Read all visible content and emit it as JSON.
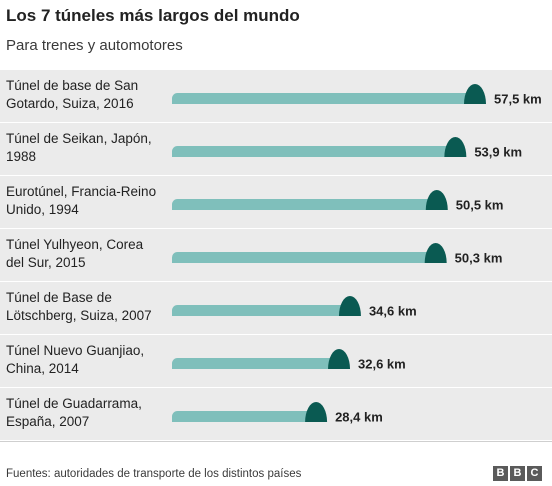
{
  "chart_data": {
    "type": "bar",
    "orientation": "horizontal",
    "title": "Los 7 túneles más largos del mundo",
    "subtitle": "Para trenes y automotores",
    "unit": "km",
    "categories": [
      [
        "Túnel de base de San",
        "Gotardo, Suiza, 2016"
      ],
      [
        "Túnel de Seikan, Japón,",
        "1988"
      ],
      [
        "Eurotúnel, Francia-Reino",
        "Unido, 1994"
      ],
      [
        "Túnel Yulhyeon, Corea",
        "del Sur, 2015"
      ],
      [
        "Túnel de Base de",
        "Lötschberg, Suiza, 2007"
      ],
      [
        "Túnel Nuevo Guanjiao,",
        "China, 2014"
      ],
      [
        "Túnel de Guadarrama,",
        "España, 2007"
      ]
    ],
    "values": [
      57.5,
      53.9,
      50.5,
      50.3,
      34.6,
      32.6,
      28.4
    ],
    "value_labels": [
      "57,5 km",
      "53,9 km",
      "50,5 km",
      "50,3 km",
      "34,6 km",
      "32,6 km",
      "28,4 km"
    ],
    "xlim": [
      0,
      57.5
    ],
    "colors": {
      "bar": "#7fbfbb",
      "tunnel_mouth": "#0a5a52",
      "row_background": "#ebebeb"
    }
  },
  "source": "Fuentes: autoridades de transporte de los distintos países",
  "logo": [
    "B",
    "B",
    "C"
  ]
}
